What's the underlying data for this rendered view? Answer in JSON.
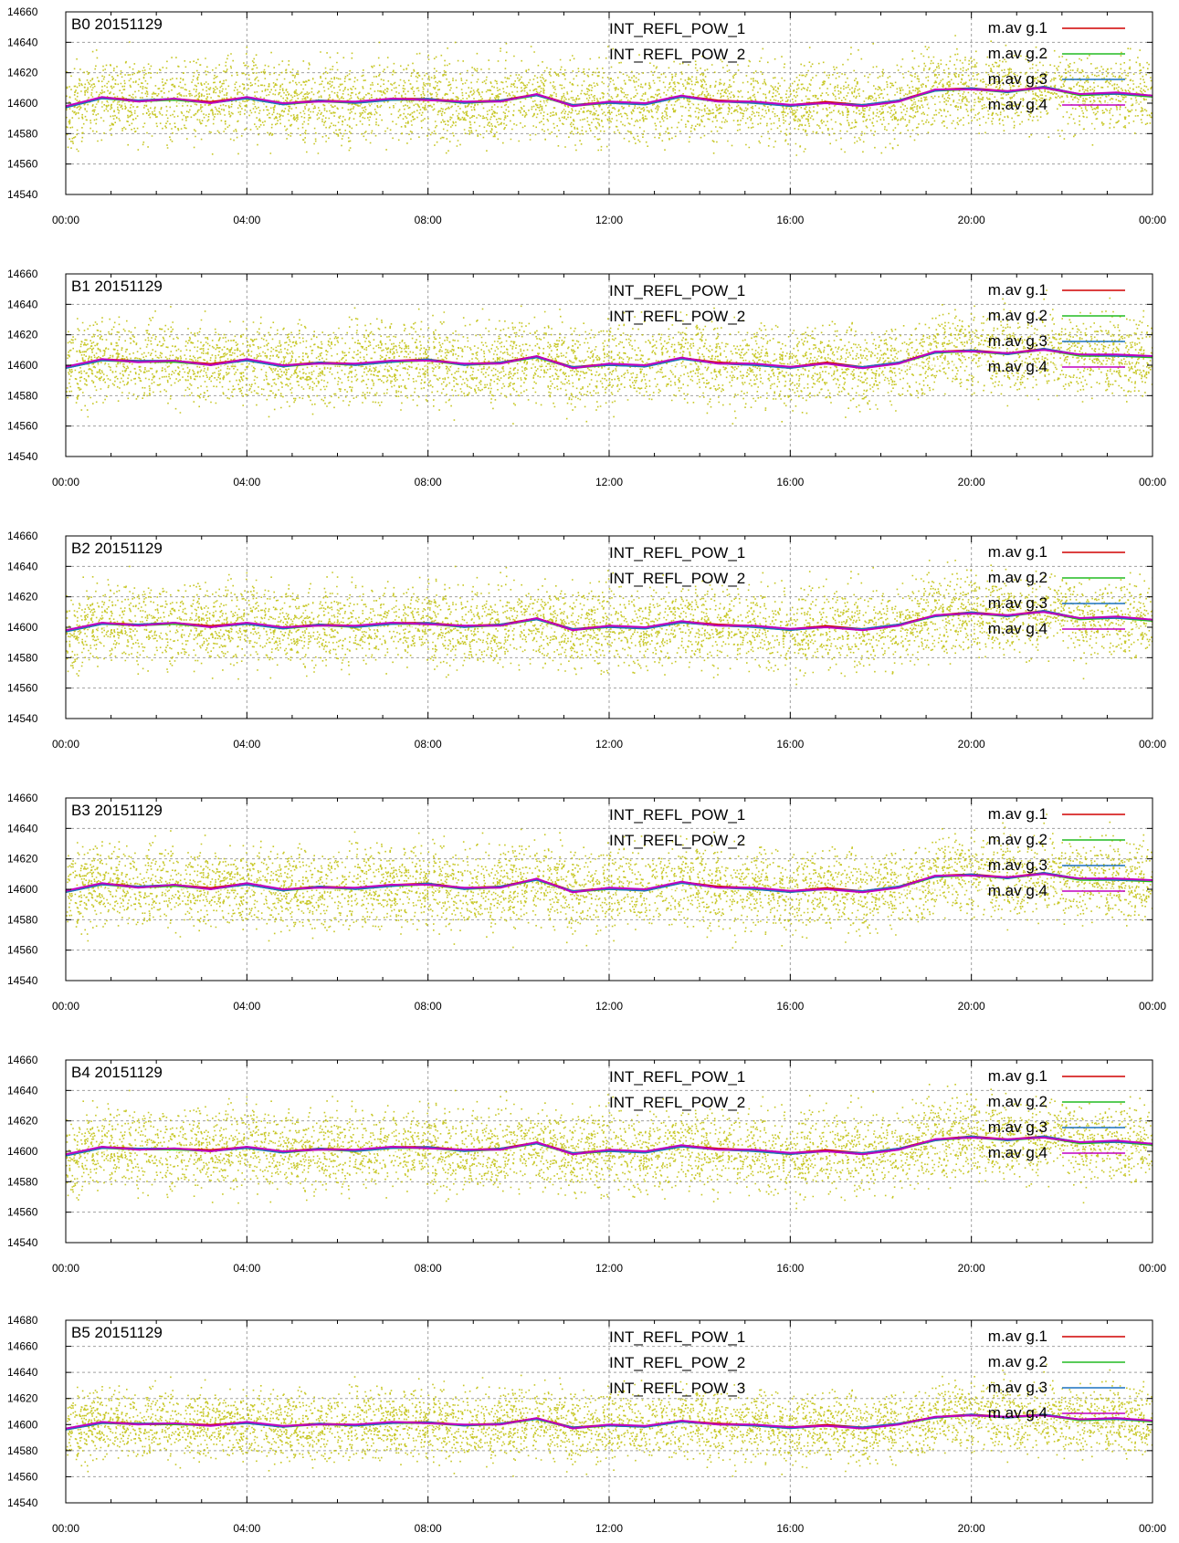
{
  "colors": {
    "background": "#ffffff",
    "frame": "#000000",
    "grid": "#a0a0a0",
    "scatter": "#bdbd00",
    "avg_line_1": "#d00000",
    "avg_line_2": "#22bb22",
    "avg_line_3": "#1a70c0",
    "avg_line_4": "#c000c0",
    "reference_line": "#ffffff"
  },
  "chart_data": [
    {
      "type": "scatter",
      "title": "B0 20151129",
      "x_tick_labels": [
        "00:00",
        "04:00",
        "08:00",
        "12:00",
        "16:00",
        "20:00",
        "00:00"
      ],
      "y_ticks": [
        14540,
        14560,
        14580,
        14600,
        14620,
        14640,
        14660
      ],
      "ylim": [
        14540,
        14660
      ],
      "grid": true,
      "legend_position": "top-right",
      "scatter_labels": [
        "INT_REFL_POW_1",
        "INT_REFL_POW_2"
      ],
      "series": [
        {
          "name": "m.av g.1",
          "values": [
            14598,
            14604,
            14602,
            14603,
            14601,
            14604,
            14600,
            14602,
            14601,
            14603,
            14603,
            14601,
            14602,
            14606,
            14599,
            14601,
            14600,
            14605,
            14602,
            14601,
            14599,
            14601,
            14599,
            14602,
            14609,
            14610,
            14608,
            14611,
            14606,
            14607,
            14605
          ]
        },
        {
          "name": "m.av g.2",
          "values": [
            14597,
            14603,
            14601,
            14602,
            14600,
            14603,
            14599,
            14601,
            14600,
            14602,
            14602,
            14600,
            14601,
            14605,
            14598,
            14600,
            14599,
            14604,
            14601,
            14600,
            14598,
            14600,
            14598,
            14601,
            14608,
            14609,
            14607,
            14610,
            14605,
            14606,
            14604
          ]
        },
        {
          "name": "m.av g.3",
          "values": [
            14597,
            14603,
            14602,
            14603,
            14600,
            14603,
            14599,
            14602,
            14600,
            14602,
            14603,
            14600,
            14602,
            14605,
            14599,
            14600,
            14599,
            14604,
            14601,
            14600,
            14598,
            14600,
            14599,
            14602,
            14608,
            14610,
            14607,
            14611,
            14606,
            14606,
            14605
          ]
        },
        {
          "name": "m.av g.4",
          "values": [
            14598,
            14604,
            14601,
            14603,
            14600,
            14604,
            14600,
            14601,
            14601,
            14603,
            14602,
            14601,
            14601,
            14606,
            14598,
            14601,
            14600,
            14605,
            14601,
            14601,
            14599,
            14600,
            14598,
            14601,
            14609,
            14609,
            14608,
            14610,
            14606,
            14607,
            14605
          ]
        }
      ]
    },
    {
      "type": "scatter",
      "title": "B1 20151129",
      "x_tick_labels": [
        "00:00",
        "04:00",
        "08:00",
        "12:00",
        "16:00",
        "20:00",
        "00:00"
      ],
      "y_ticks": [
        14540,
        14560,
        14580,
        14600,
        14620,
        14640,
        14660
      ],
      "ylim": [
        14540,
        14660
      ],
      "grid": true,
      "legend_position": "top-right",
      "scatter_labels": [
        "INT_REFL_POW_1",
        "INT_REFL_POW_2"
      ],
      "series": [
        {
          "name": "m.av g.1",
          "values": [
            14599,
            14604,
            14603,
            14603,
            14601,
            14604,
            14600,
            14602,
            14601,
            14603,
            14604,
            14601,
            14602,
            14606,
            14599,
            14601,
            14600,
            14605,
            14602,
            14601,
            14599,
            14602,
            14599,
            14602,
            14609,
            14610,
            14608,
            14611,
            14607,
            14607,
            14606
          ]
        },
        {
          "name": "m.av g.2",
          "values": [
            14598,
            14603,
            14602,
            14602,
            14600,
            14603,
            14599,
            14601,
            14600,
            14602,
            14603,
            14600,
            14601,
            14605,
            14598,
            14600,
            14599,
            14604,
            14601,
            14600,
            14598,
            14601,
            14598,
            14601,
            14608,
            14609,
            14607,
            14610,
            14606,
            14606,
            14605
          ]
        },
        {
          "name": "m.av g.3",
          "values": [
            14598,
            14603,
            14603,
            14603,
            14600,
            14603,
            14599,
            14602,
            14600,
            14602,
            14604,
            14600,
            14602,
            14605,
            14599,
            14600,
            14599,
            14604,
            14601,
            14600,
            14598,
            14601,
            14599,
            14602,
            14608,
            14610,
            14607,
            14611,
            14607,
            14606,
            14606
          ]
        },
        {
          "name": "m.av g.4",
          "values": [
            14599,
            14604,
            14602,
            14603,
            14600,
            14604,
            14600,
            14601,
            14601,
            14603,
            14603,
            14601,
            14601,
            14606,
            14598,
            14601,
            14600,
            14605,
            14601,
            14601,
            14599,
            14601,
            14598,
            14601,
            14609,
            14609,
            14608,
            14610,
            14607,
            14607,
            14606
          ]
        }
      ]
    },
    {
      "type": "scatter",
      "title": "B2 20151129",
      "x_tick_labels": [
        "00:00",
        "04:00",
        "08:00",
        "12:00",
        "16:00",
        "20:00",
        "00:00"
      ],
      "y_ticks": [
        14540,
        14560,
        14580,
        14600,
        14620,
        14640,
        14660
      ],
      "ylim": [
        14540,
        14660
      ],
      "grid": true,
      "legend_position": "top-right",
      "scatter_labels": [
        "INT_REFL_POW_1",
        "INT_REFL_POW_2"
      ],
      "series": [
        {
          "name": "m.av g.1",
          "values": [
            14598,
            14603,
            14602,
            14603,
            14601,
            14603,
            14600,
            14602,
            14601,
            14603,
            14603,
            14601,
            14602,
            14606,
            14599,
            14601,
            14600,
            14604,
            14602,
            14601,
            14599,
            14601,
            14599,
            14602,
            14608,
            14610,
            14608,
            14611,
            14606,
            14607,
            14605
          ]
        },
        {
          "name": "m.av g.2",
          "values": [
            14597,
            14602,
            14601,
            14602,
            14600,
            14602,
            14599,
            14601,
            14600,
            14602,
            14602,
            14600,
            14601,
            14605,
            14598,
            14600,
            14599,
            14603,
            14601,
            14600,
            14598,
            14600,
            14598,
            14601,
            14607,
            14609,
            14607,
            14610,
            14605,
            14606,
            14604
          ]
        },
        {
          "name": "m.av g.3",
          "values": [
            14597,
            14602,
            14602,
            14603,
            14600,
            14602,
            14599,
            14602,
            14600,
            14602,
            14603,
            14600,
            14602,
            14605,
            14599,
            14600,
            14599,
            14603,
            14601,
            14600,
            14598,
            14600,
            14599,
            14602,
            14607,
            14610,
            14607,
            14611,
            14606,
            14606,
            14605
          ]
        },
        {
          "name": "m.av g.4",
          "values": [
            14598,
            14603,
            14601,
            14603,
            14600,
            14603,
            14600,
            14601,
            14601,
            14603,
            14602,
            14601,
            14601,
            14606,
            14598,
            14601,
            14600,
            14604,
            14601,
            14601,
            14599,
            14600,
            14598,
            14601,
            14608,
            14609,
            14608,
            14610,
            14606,
            14607,
            14605
          ]
        }
      ]
    },
    {
      "type": "scatter",
      "title": "B3 20151129",
      "x_tick_labels": [
        "00:00",
        "04:00",
        "08:00",
        "12:00",
        "16:00",
        "20:00",
        "00:00"
      ],
      "y_ticks": [
        14540,
        14560,
        14580,
        14600,
        14620,
        14640,
        14660
      ],
      "ylim": [
        14540,
        14660
      ],
      "grid": true,
      "legend_position": "top-right",
      "scatter_labels": [
        "INT_REFL_POW_1",
        "INT_REFL_POW_2"
      ],
      "series": [
        {
          "name": "m.av g.1",
          "values": [
            14599,
            14604,
            14602,
            14603,
            14601,
            14604,
            14600,
            14602,
            14601,
            14603,
            14604,
            14601,
            14602,
            14607,
            14599,
            14601,
            14600,
            14605,
            14602,
            14601,
            14599,
            14601,
            14599,
            14602,
            14609,
            14610,
            14608,
            14611,
            14607,
            14607,
            14606
          ]
        },
        {
          "name": "m.av g.2",
          "values": [
            14598,
            14603,
            14601,
            14602,
            14600,
            14603,
            14599,
            14601,
            14600,
            14602,
            14603,
            14600,
            14601,
            14606,
            14598,
            14600,
            14599,
            14604,
            14601,
            14600,
            14598,
            14600,
            14598,
            14601,
            14608,
            14609,
            14607,
            14610,
            14606,
            14606,
            14605
          ]
        },
        {
          "name": "m.av g.3",
          "values": [
            14598,
            14603,
            14602,
            14603,
            14600,
            14603,
            14599,
            14602,
            14600,
            14602,
            14604,
            14600,
            14602,
            14606,
            14599,
            14600,
            14599,
            14604,
            14601,
            14600,
            14598,
            14600,
            14599,
            14602,
            14608,
            14610,
            14607,
            14611,
            14607,
            14606,
            14606
          ]
        },
        {
          "name": "m.av g.4",
          "values": [
            14599,
            14604,
            14601,
            14603,
            14600,
            14604,
            14600,
            14601,
            14601,
            14603,
            14603,
            14601,
            14601,
            14607,
            14598,
            14601,
            14600,
            14605,
            14601,
            14601,
            14599,
            14600,
            14598,
            14601,
            14609,
            14609,
            14608,
            14610,
            14607,
            14607,
            14606
          ]
        }
      ]
    },
    {
      "type": "scatter",
      "title": "B4 20151129",
      "x_tick_labels": [
        "00:00",
        "04:00",
        "08:00",
        "12:00",
        "16:00",
        "20:00",
        "00:00"
      ],
      "y_ticks": [
        14540,
        14560,
        14580,
        14600,
        14620,
        14640,
        14660
      ],
      "ylim": [
        14540,
        14660
      ],
      "grid": true,
      "legend_position": "top-right",
      "scatter_labels": [
        "INT_REFL_POW_1",
        "INT_REFL_POW_2"
      ],
      "series": [
        {
          "name": "m.av g.1",
          "values": [
            14598,
            14603,
            14602,
            14602,
            14601,
            14603,
            14600,
            14602,
            14601,
            14603,
            14603,
            14601,
            14602,
            14606,
            14599,
            14601,
            14600,
            14604,
            14602,
            14601,
            14599,
            14601,
            14599,
            14602,
            14608,
            14610,
            14608,
            14610,
            14606,
            14607,
            14605
          ]
        },
        {
          "name": "m.av g.2",
          "values": [
            14597,
            14602,
            14601,
            14601,
            14600,
            14602,
            14599,
            14601,
            14600,
            14602,
            14602,
            14600,
            14601,
            14605,
            14598,
            14600,
            14599,
            14603,
            14601,
            14600,
            14598,
            14600,
            14598,
            14601,
            14607,
            14609,
            14607,
            14609,
            14605,
            14606,
            14604
          ]
        },
        {
          "name": "m.av g.3",
          "values": [
            14597,
            14602,
            14602,
            14602,
            14600,
            14602,
            14599,
            14602,
            14600,
            14602,
            14603,
            14600,
            14602,
            14605,
            14599,
            14600,
            14599,
            14603,
            14601,
            14600,
            14598,
            14600,
            14599,
            14602,
            14607,
            14610,
            14607,
            14610,
            14606,
            14606,
            14605
          ]
        },
        {
          "name": "m.av g.4",
          "values": [
            14598,
            14603,
            14601,
            14602,
            14600,
            14603,
            14600,
            14601,
            14601,
            14603,
            14602,
            14601,
            14601,
            14606,
            14598,
            14601,
            14600,
            14604,
            14601,
            14601,
            14599,
            14600,
            14598,
            14601,
            14608,
            14609,
            14608,
            14609,
            14606,
            14607,
            14605
          ]
        }
      ]
    },
    {
      "type": "scatter",
      "title": "B5 20151129",
      "x_tick_labels": [
        "00:00",
        "04:00",
        "08:00",
        "12:00",
        "16:00",
        "20:00",
        "00:00"
      ],
      "y_ticks": [
        14540,
        14560,
        14580,
        14600,
        14620,
        14640,
        14660,
        14680
      ],
      "ylim": [
        14540,
        14680
      ],
      "grid": true,
      "legend_position": "top-right",
      "scatter_labels": [
        "INT_REFL_POW_1",
        "INT_REFL_POW_2",
        "INT_REFL_POW_3"
      ],
      "series": [
        {
          "name": "m.av g.1",
          "values": [
            14597,
            14602,
            14601,
            14601,
            14600,
            14602,
            14599,
            14601,
            14600,
            14602,
            14602,
            14600,
            14601,
            14605,
            14598,
            14600,
            14599,
            14603,
            14601,
            14600,
            14598,
            14600,
            14598,
            14601,
            14606,
            14608,
            14606,
            14608,
            14604,
            14605,
            14603
          ]
        },
        {
          "name": "m.av g.2",
          "values": [
            14596,
            14601,
            14600,
            14600,
            14599,
            14601,
            14598,
            14600,
            14599,
            14601,
            14601,
            14599,
            14600,
            14604,
            14597,
            14599,
            14598,
            14602,
            14600,
            14599,
            14597,
            14599,
            14597,
            14600,
            14605,
            14607,
            14605,
            14607,
            14603,
            14604,
            14602
          ]
        },
        {
          "name": "m.av g.3",
          "values": [
            14596,
            14601,
            14601,
            14601,
            14599,
            14601,
            14598,
            14601,
            14599,
            14601,
            14602,
            14599,
            14601,
            14604,
            14598,
            14599,
            14598,
            14602,
            14600,
            14599,
            14597,
            14599,
            14598,
            14601,
            14605,
            14608,
            14605,
            14608,
            14604,
            14604,
            14603
          ]
        },
        {
          "name": "m.av g.4",
          "values": [
            14597,
            14602,
            14600,
            14601,
            14599,
            14602,
            14599,
            14600,
            14600,
            14602,
            14601,
            14600,
            14600,
            14605,
            14597,
            14600,
            14599,
            14603,
            14600,
            14600,
            14598,
            14599,
            14597,
            14600,
            14606,
            14607,
            14606,
            14607,
            14604,
            14605,
            14603
          ]
        }
      ]
    }
  ]
}
